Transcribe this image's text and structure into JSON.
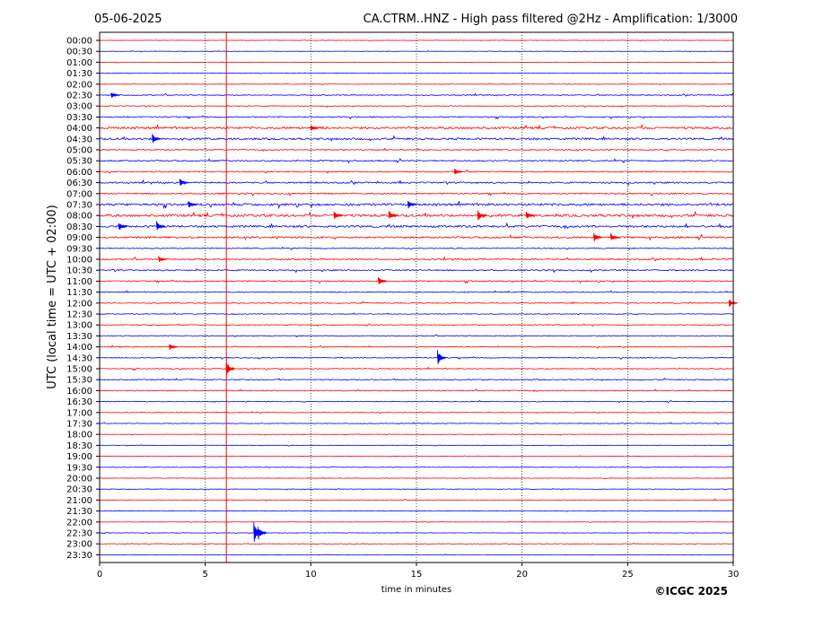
{
  "header": {
    "date": "05-06-2025",
    "title": "CA.CTRM..HNZ - High pass filtered @2Hz - Amplification: 1/3000"
  },
  "footer": {
    "copyright": "©ICGC 2025"
  },
  "colors": {
    "trace_red": "#ff0000",
    "trace_blue": "#0000ff",
    "grid": "#000000",
    "marker": "#ff0000"
  },
  "chart_data": {
    "type": "line",
    "title": "CA.CTRM..HNZ - High pass filtered @2Hz - Amplification: 1/3000",
    "xlabel": "time in minutes",
    "ylabel": "UTC (local time = UTC + 02:00)",
    "xlim": [
      0,
      30
    ],
    "x_ticks": [
      "0",
      "5",
      "10",
      "15",
      "20",
      "25",
      "30"
    ],
    "vertical_gridlines_minutes": [
      5,
      10,
      15,
      20,
      25
    ],
    "grid_style": "dotted",
    "red_marker_minute": 6,
    "row_labels": [
      "00:00",
      "00:30",
      "01:00",
      "01:30",
      "02:00",
      "02:30",
      "03:00",
      "03:30",
      "04:00",
      "04:30",
      "05:00",
      "05:30",
      "06:00",
      "06:30",
      "07:00",
      "07:30",
      "08:00",
      "08:30",
      "09:00",
      "09:30",
      "10:00",
      "10:30",
      "11:00",
      "11:30",
      "12:00",
      "12:30",
      "13:00",
      "13:30",
      "14:00",
      "14:30",
      "15:00",
      "15:30",
      "16:00",
      "16:30",
      "17:00",
      "17:30",
      "18:00",
      "18:30",
      "19:00",
      "19:30",
      "20:00",
      "20:30",
      "21:00",
      "21:30",
      "22:00",
      "22:30",
      "23:00",
      "23:30"
    ],
    "row_colors": [
      "red",
      "blue",
      "red",
      "blue",
      "red",
      "blue",
      "red",
      "blue",
      "red",
      "blue",
      "red",
      "blue",
      "red",
      "blue",
      "red",
      "blue",
      "red",
      "blue",
      "red",
      "blue",
      "red",
      "blue",
      "red",
      "blue",
      "red",
      "blue",
      "red",
      "blue",
      "red",
      "blue",
      "red",
      "blue",
      "red",
      "blue",
      "red",
      "blue",
      "red",
      "blue",
      "red",
      "blue",
      "red",
      "blue",
      "red",
      "blue",
      "red",
      "blue",
      "red",
      "blue"
    ],
    "noise_level": [
      0.4,
      0.4,
      0.4,
      0.4,
      0.5,
      1.0,
      0.8,
      1.2,
      2.2,
      2.0,
      1.2,
      1.4,
      1.2,
      1.6,
      1.4,
      2.4,
      2.6,
      2.2,
      1.8,
      1.0,
      1.4,
      1.4,
      1.2,
      1.0,
      1.0,
      0.8,
      0.8,
      0.9,
      0.9,
      0.9,
      1.0,
      1.0,
      1.0,
      0.8,
      0.7,
      0.7,
      0.5,
      0.5,
      0.5,
      0.5,
      0.5,
      0.5,
      0.7,
      0.4,
      0.4,
      0.5,
      0.5,
      0.4
    ],
    "events": [
      {
        "row": 5,
        "minute": 0.55,
        "amp": 4
      },
      {
        "row": 8,
        "minute": 10.0,
        "amp": 4
      },
      {
        "row": 9,
        "minute": 2.5,
        "amp": 6
      },
      {
        "row": 12,
        "minute": 16.8,
        "amp": 4
      },
      {
        "row": 13,
        "minute": 3.8,
        "amp": 5
      },
      {
        "row": 15,
        "minute": 4.2,
        "amp": 5
      },
      {
        "row": 15,
        "minute": 14.6,
        "amp": 5
      },
      {
        "row": 16,
        "minute": 11.1,
        "amp": 6
      },
      {
        "row": 16,
        "minute": 13.7,
        "amp": 6
      },
      {
        "row": 16,
        "minute": 17.9,
        "amp": 7
      },
      {
        "row": 16,
        "minute": 20.2,
        "amp": 5
      },
      {
        "row": 17,
        "minute": 0.9,
        "amp": 6
      },
      {
        "row": 17,
        "minute": 2.7,
        "amp": 6
      },
      {
        "row": 18,
        "minute": 23.4,
        "amp": 6
      },
      {
        "row": 18,
        "minute": 24.2,
        "amp": 5
      },
      {
        "row": 20,
        "minute": 2.8,
        "amp": 4
      },
      {
        "row": 22,
        "minute": 13.2,
        "amp": 6
      },
      {
        "row": 24,
        "minute": 29.8,
        "amp": 5
      },
      {
        "row": 28,
        "minute": 3.3,
        "amp": 4
      },
      {
        "row": 29,
        "minute": 16.0,
        "amp": 9
      },
      {
        "row": 30,
        "minute": 6.0,
        "amp": 9
      },
      {
        "row": 45,
        "minute": 7.3,
        "amp": 12
      },
      {
        "row": 45,
        "minute": 7.5,
        "amp": 9
      }
    ]
  }
}
